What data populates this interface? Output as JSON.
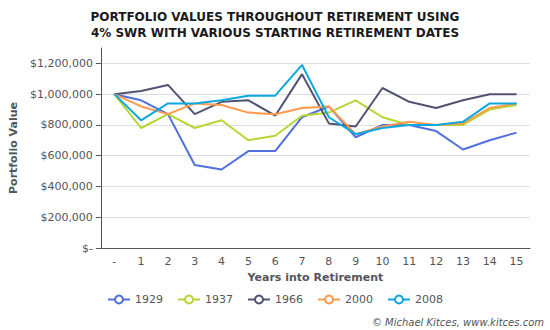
{
  "chart_data": {
    "type": "line",
    "title": "PORTFOLIO VALUES THROUGHOUT RETIREMENT USING\n4% SWR WITH VARIOUS STARTING RETIREMENT DATES",
    "x_label": "Years into Retirement",
    "y_label": "Portfolio Value",
    "categories": [
      "-",
      "1",
      "2",
      "3",
      "4",
      "5",
      "6",
      "7",
      "8",
      "9",
      "10",
      "11",
      "12",
      "13",
      "14",
      "15"
    ],
    "series": [
      {
        "name": "1929",
        "values": [
          1000000,
          960000,
          870000,
          540000,
          510000,
          630000,
          630000,
          850000,
          920000,
          720000,
          800000,
          800000,
          760000,
          640000,
          700000,
          750000
        ]
      },
      {
        "name": "1937",
        "values": [
          1000000,
          780000,
          870000,
          780000,
          830000,
          700000,
          730000,
          860000,
          880000,
          960000,
          850000,
          800000,
          800000,
          800000,
          900000,
          930000
        ]
      },
      {
        "name": "1966",
        "values": [
          1000000,
          1020000,
          1060000,
          870000,
          950000,
          960000,
          860000,
          1130000,
          810000,
          790000,
          1040000,
          950000,
          910000,
          960000,
          1000000,
          1000000
        ]
      },
      {
        "name": "2000",
        "values": [
          1000000,
          920000,
          870000,
          940000,
          930000,
          880000,
          870000,
          910000,
          920000,
          740000,
          790000,
          820000,
          800000,
          810000,
          910000,
          940000
        ]
      },
      {
        "name": "2008",
        "values": [
          1000000,
          830000,
          940000,
          940000,
          960000,
          990000,
          990000,
          1190000,
          850000,
          740000,
          780000,
          800000,
          800000,
          820000,
          940000,
          940000
        ]
      }
    ],
    "ylim": [
      0,
      1300000
    ],
    "yticks": [
      {
        "value": 0,
        "label": "$-"
      },
      {
        "value": 200000,
        "label": "$200,000"
      },
      {
        "value": 400000,
        "label": "$400,000"
      },
      {
        "value": 600000,
        "label": "$600,000"
      },
      {
        "value": 800000,
        "label": "$800,000"
      },
      {
        "value": 1000000,
        "label": "$1,000,000"
      },
      {
        "value": 1200000,
        "label": "$1,200,000"
      }
    ],
    "grid": true,
    "legend": "bottom",
    "annotations": [
      "© Michael Kitces, www.kitces.com"
    ]
  }
}
